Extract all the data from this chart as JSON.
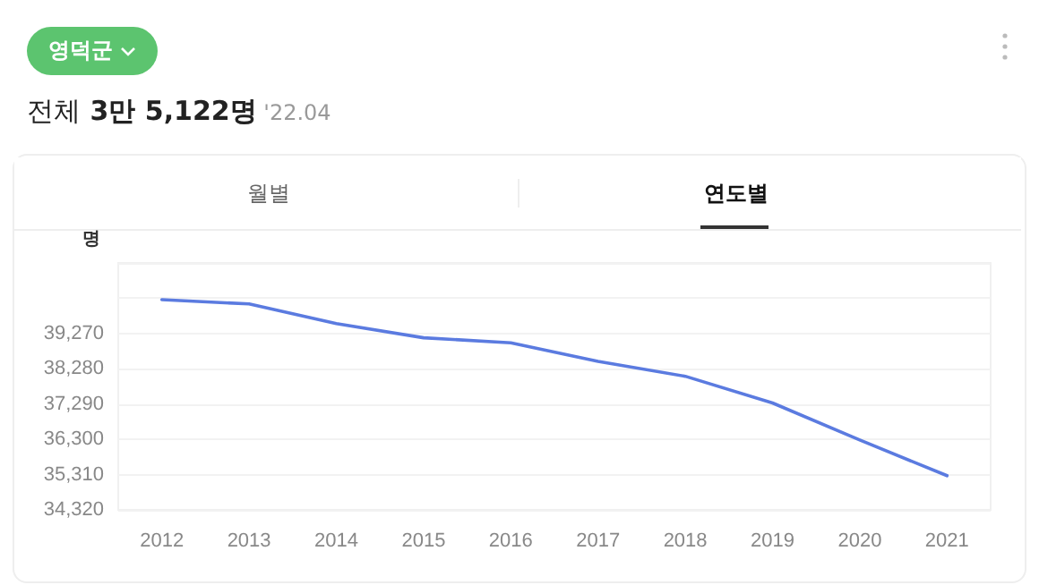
{
  "chart_data": {
    "type": "line",
    "title": "영덕군",
    "subtitle": "전체 3만 5,122명 '22.04",
    "annotations": [
      "월별",
      "연도별"
    ],
    "ylabel": "명",
    "categories": [
      "2012",
      "2013",
      "2014",
      "2015",
      "2016",
      "2017",
      "2018",
      "2019",
      "2020",
      "2021"
    ],
    "series": [
      {
        "color": "#5b7be0",
        "values": [
          40220,
          40100,
          39550,
          39150,
          39010,
          38490,
          38070,
          37320,
          36280,
          35280
        ]
      }
    ],
    "ylim": [
      34320,
      41250
    ],
    "yticks": [
      {
        "value": 34320,
        "label": "34,320"
      },
      {
        "value": 35310,
        "label": "35,310"
      },
      {
        "value": 36300,
        "label": "36,300"
      },
      {
        "value": 37290,
        "label": "37,290"
      },
      {
        "value": 38280,
        "label": "38,280"
      },
      {
        "value": 39270,
        "label": "39,270"
      },
      {
        "value": 40260,
        "label": null
      },
      {
        "value": 41250,
        "label": null
      }
    ],
    "grid": "y",
    "marker": "none",
    "line_style": "solid"
  }
}
